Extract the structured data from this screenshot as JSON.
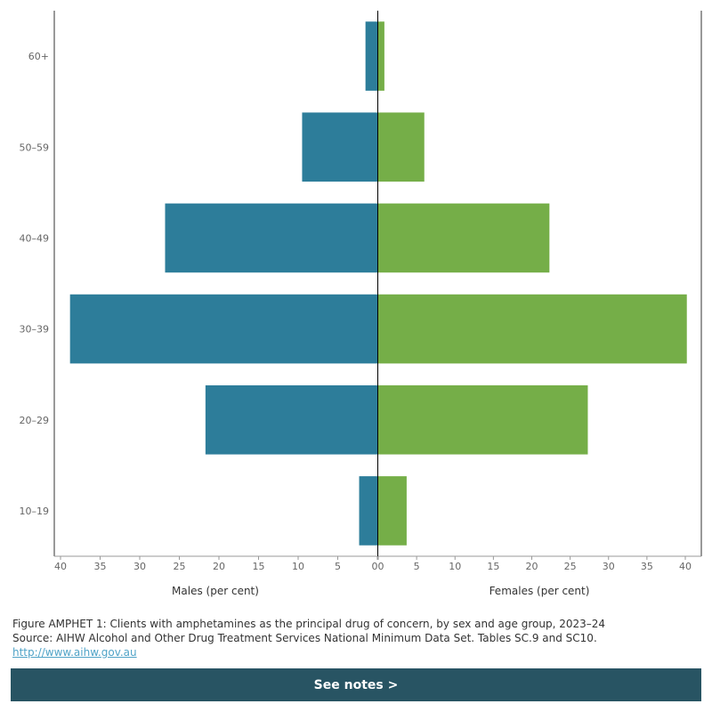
{
  "chart_data": {
    "type": "bar",
    "orientation": "horizontal",
    "layout": "population-pyramid",
    "categories": [
      "60+",
      "50–59",
      "40–49",
      "30–39",
      "20–29",
      "10–19"
    ],
    "series": [
      {
        "name": "Males (per cent)",
        "values": [
          1.5,
          9.5,
          26.8,
          38.8,
          21.7,
          2.3
        ]
      },
      {
        "name": "Females (per cent)",
        "values": [
          0.8,
          6.0,
          22.3,
          40.2,
          27.3,
          3.7
        ]
      }
    ],
    "xlabel_left": "Males (per cent)",
    "xlabel_right": "Females (per cent)",
    "xlim": [
      0,
      40
    ],
    "xticks": [
      "40",
      "35",
      "30",
      "25",
      "20",
      "15",
      "10",
      "5",
      "0"
    ],
    "xticks_right": [
      "0",
      "5",
      "10",
      "15",
      "20",
      "25",
      "30",
      "35",
      "40"
    ],
    "colors": {
      "males": "#2d7d9a",
      "females": "#75ae48"
    },
    "grid": false
  },
  "caption": {
    "figure_title": "Figure AMPHET 1: Clients with amphetamines as the principal drug of concern, by sex and age group, 2023–24",
    "source": "Source: AIHW Alcohol and Other Drug Treatment Services National Minimum Data Set. Tables SC.9 and SC10.",
    "link": "http://www.aihw.gov.au"
  },
  "notes_button": {
    "label": "See notes >"
  }
}
